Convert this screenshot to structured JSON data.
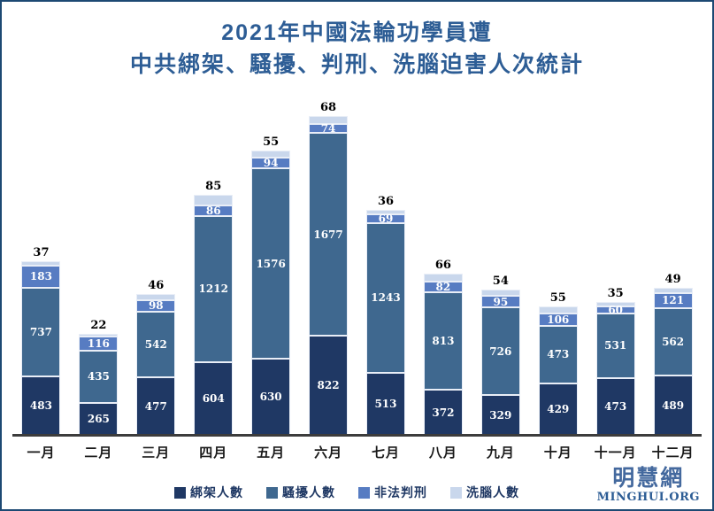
{
  "title": {
    "line1": "2021年中國法輪功學員遭",
    "line2": "中共綁架、騷擾、判刑、洗腦迫害人次統計"
  },
  "chart_data": {
    "type": "bar",
    "stacked": true,
    "title": "2021年中國法輪功學員遭中共綁架、騷擾、判刑、洗腦迫害人次統計",
    "categories": [
      "一月",
      "二月",
      "三月",
      "四月",
      "五月",
      "六月",
      "七月",
      "八月",
      "九月",
      "十月",
      "十一月",
      "十二月"
    ],
    "series": [
      {
        "key": "abducted",
        "name": "綁架人數",
        "color": "#1F3864",
        "label_position": "inside",
        "values": [
          483,
          265,
          477,
          604,
          630,
          822,
          513,
          372,
          329,
          429,
          473,
          489
        ]
      },
      {
        "key": "harassed",
        "name": "騷擾人數",
        "color": "#3F688F",
        "label_position": "inside",
        "values": [
          737,
          435,
          542,
          1212,
          1576,
          1677,
          1243,
          813,
          726,
          473,
          531,
          562
        ]
      },
      {
        "key": "sentenced",
        "name": "非法判刑",
        "color": "#577CC2",
        "label_position": "inside",
        "values": [
          183,
          116,
          98,
          86,
          94,
          74,
          69,
          82,
          95,
          106,
          60,
          121
        ]
      },
      {
        "key": "brainwashed",
        "name": "洗腦人數",
        "color": "#C9D7EC",
        "label_position": "above",
        "values": [
          37,
          22,
          46,
          85,
          55,
          68,
          36,
          66,
          54,
          55,
          35,
          49
        ]
      }
    ],
    "xlabel": "",
    "ylabel": "",
    "ylim": [
      0,
      2700
    ],
    "grid": false,
    "legend_position": "bottom"
  },
  "watermark": {
    "cjk": "明慧網",
    "latin": "MINGHUI.ORG"
  },
  "colors": {
    "title": "#2d5d95",
    "border": "#1d4973",
    "axis": "#3c3c3c",
    "legend_text": "#1f3864"
  }
}
